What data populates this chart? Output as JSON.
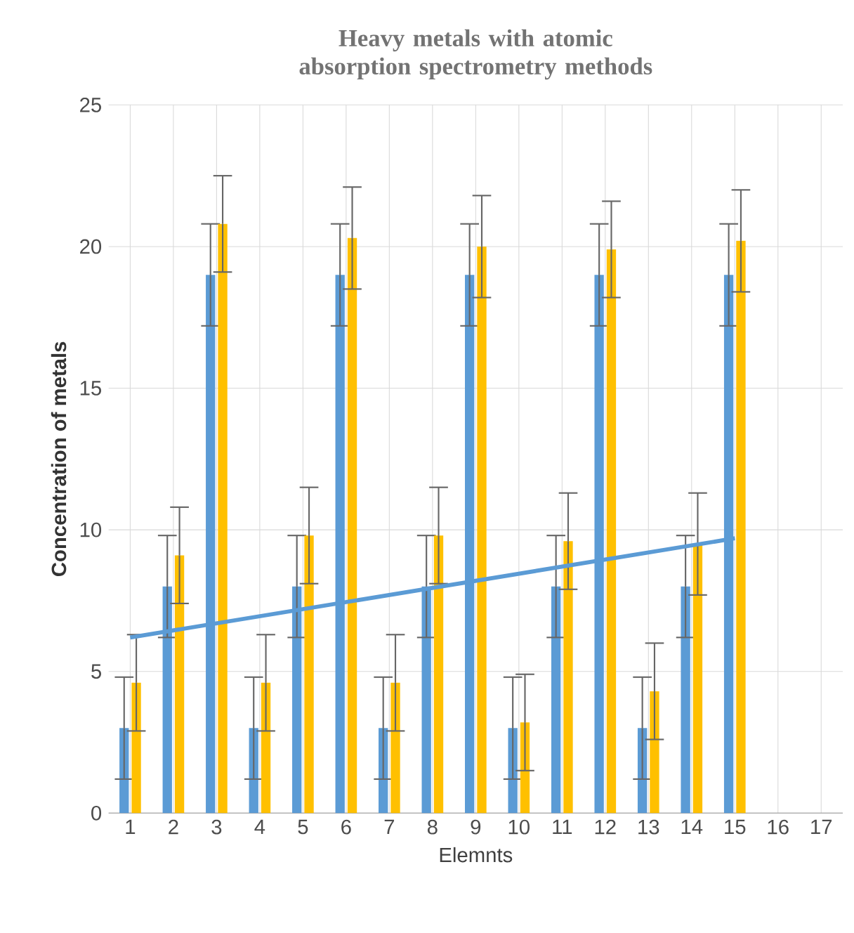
{
  "chart_data": {
    "type": "bar",
    "title": "Heavy metals with atomic absorption spectrometry methods",
    "xlabel": "Elemnts",
    "ylabel": "Concentration of metals",
    "categories": [
      "1",
      "2",
      "3",
      "4",
      "5",
      "6",
      "7",
      "8",
      "9",
      "10",
      "11",
      "12",
      "13",
      "14",
      "15",
      "16",
      "17"
    ],
    "series": [
      {
        "color": "#5b9bd5",
        "values": [
          3,
          8,
          19,
          3,
          8,
          19,
          3,
          8,
          19,
          3,
          8,
          19,
          3,
          8,
          19,
          null,
          null
        ],
        "errors": [
          1.8,
          1.8,
          1.8,
          1.8,
          1.8,
          1.8,
          1.8,
          1.8,
          1.8,
          1.8,
          1.8,
          1.8,
          1.8,
          1.8,
          1.8,
          null,
          null
        ]
      },
      {
        "color": "#ffc000",
        "values": [
          4.6,
          9.1,
          20.8,
          4.6,
          9.8,
          20.3,
          4.6,
          9.8,
          20,
          3.2,
          9.6,
          19.9,
          4.3,
          9.5,
          20.2,
          null,
          null
        ],
        "errors": [
          1.7,
          1.7,
          1.7,
          1.7,
          1.7,
          1.8,
          1.7,
          1.7,
          1.8,
          1.7,
          1.7,
          1.7,
          1.7,
          1.8,
          1.8,
          null,
          null
        ]
      },
      {
        "type": "line",
        "color": "#5b9bd5",
        "x": [
          "1",
          "15"
        ],
        "values": [
          6.2,
          9.7
        ]
      }
    ],
    "ylim": [
      0,
      25
    ],
    "yticks": [
      0,
      5,
      10,
      15,
      20,
      25
    ],
    "grid": true
  }
}
